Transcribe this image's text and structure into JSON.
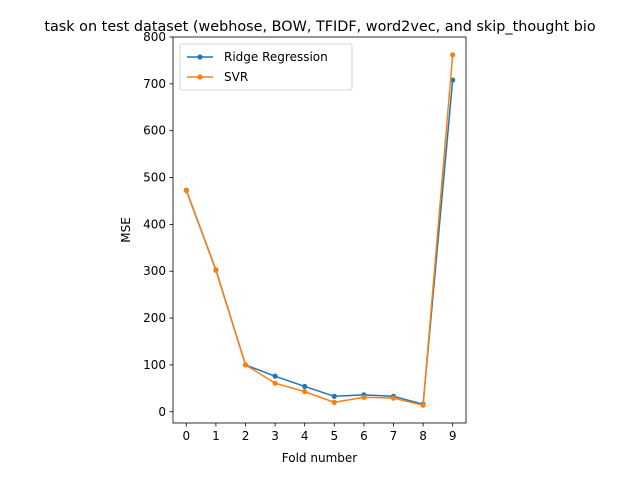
{
  "chart_data": {
    "type": "line",
    "title": "task on test dataset (webhose, BOW, TFIDF, word2vec, and skip_thought bio",
    "xlabel": "Fold number",
    "ylabel": "MSE",
    "x": [
      0,
      1,
      2,
      3,
      4,
      5,
      6,
      7,
      8,
      9
    ],
    "xlim": [
      -0.45,
      9.45
    ],
    "ylim": [
      -24,
      800
    ],
    "xticks": [
      0,
      1,
      2,
      3,
      4,
      5,
      6,
      7,
      8,
      9
    ],
    "yticks": [
      0,
      100,
      200,
      300,
      400,
      500,
      600,
      700,
      800
    ],
    "grid": false,
    "legend_position": "upper-left",
    "series": [
      {
        "name": "Ridge Regression",
        "color": "#1f77b4",
        "values": [
          473,
          303,
          100,
          76,
          54,
          33,
          36,
          33,
          16,
          708
        ]
      },
      {
        "name": "SVR",
        "color": "#ff7f0e",
        "values": [
          472,
          302,
          100,
          61,
          43,
          20,
          31,
          29,
          14,
          762
        ]
      }
    ]
  }
}
